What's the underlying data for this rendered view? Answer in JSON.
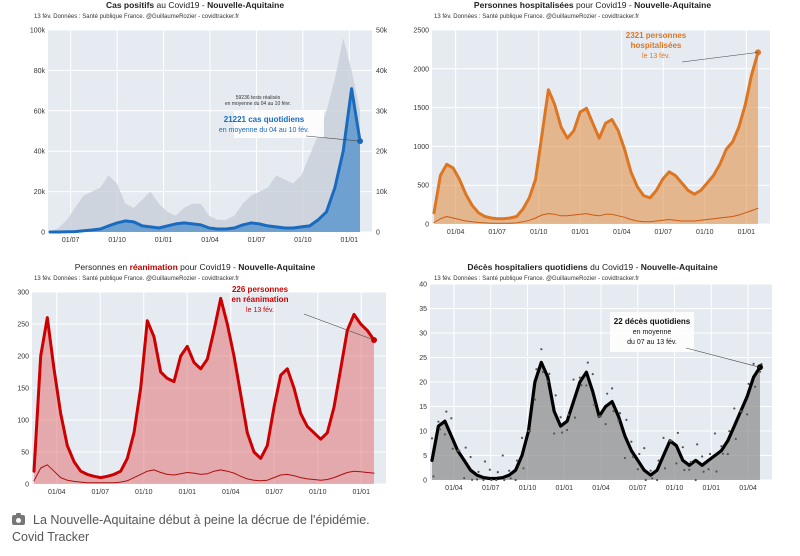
{
  "chart_data": [
    {
      "type": "area",
      "id": "cases",
      "title_pre": "Cas positifs",
      "title_mid": " au Covid19 - ",
      "title_region": "Nouvelle-Aquitaine",
      "source": "13 fév. Données : Santé publique France. @GuillaumeRozier - covidtracker.fr",
      "x_ticks": [
        "01/07",
        "01/10",
        "01/01",
        "01/04",
        "01/07",
        "01/10",
        "01/01"
      ],
      "y_ticks": [
        "0",
        "20k",
        "40k",
        "60k",
        "80k",
        "100k"
      ],
      "ylim": [
        0,
        100000
      ],
      "y2_ticks": [
        "0",
        "10k",
        "20k",
        "30k",
        "40k",
        "50k"
      ],
      "y2lim": [
        0,
        50000
      ],
      "series": [
        {
          "name": "",
          "axis": "right",
          "style": "gray-area",
          "values": [
            100,
            1000,
            3000,
            6000,
            9000,
            10000,
            11000,
            14000,
            12000,
            7000,
            6000,
            8000,
            10000,
            7000,
            5000,
            4000,
            6000,
            7000,
            7000,
            4000,
            3000,
            3000,
            4000,
            7000,
            9000,
            10000,
            11000,
            14000,
            13000,
            12000,
            14000,
            19000,
            24000,
            30000,
            38000,
            48000,
            40000,
            30000
          ]
        },
        {
          "name": "",
          "axis": "left",
          "style": "blue-line",
          "values": [
            0,
            0,
            100,
            200,
            600,
            1000,
            1500,
            3000,
            4500,
            5500,
            5000,
            3000,
            2500,
            2000,
            3000,
            4000,
            4500,
            4000,
            3500,
            2000,
            1500,
            1500,
            2000,
            3500,
            4500,
            4000,
            3000,
            2500,
            2000,
            2000,
            2500,
            3000,
            6000,
            10000,
            22000,
            40000,
            71000,
            45000
          ]
        }
      ],
      "annotations": [
        {
          "text": "59236 tests réalisés",
          "sub": "en moyenne du 04 au 10 févr."
        },
        {
          "text": "21221 cas quotidiens",
          "sub": "en moyenne du 04 au 10 fév."
        }
      ]
    },
    {
      "type": "area",
      "id": "hosp",
      "title_pre": "Personnes hospitalisées",
      "title_mid": " pour Covid19 - ",
      "title_region": "Nouvelle-Aquitaine",
      "source": "13 fév. Données : Santé publique France. @GuillaumeRozier - covidtracker.fr",
      "x_ticks": [
        "01/04",
        "01/07",
        "01/10",
        "01/01",
        "01/04",
        "01/07",
        "01/10",
        "01/01"
      ],
      "y_ticks": [
        "0",
        "500",
        "1000",
        "1500",
        "2000",
        "2500"
      ],
      "ylim": [
        0,
        2600
      ],
      "series": [
        {
          "name": "",
          "style": "orange-area",
          "values": [
            150,
            650,
            800,
            750,
            600,
            400,
            250,
            150,
            100,
            80,
            70,
            70,
            80,
            100,
            200,
            350,
            600,
            1200,
            1800,
            1600,
            1300,
            1150,
            1250,
            1500,
            1550,
            1350,
            1150,
            1350,
            1400,
            1250,
            1000,
            700,
            500,
            380,
            350,
            450,
            600,
            700,
            650,
            550,
            450,
            400,
            450,
            550,
            650,
            800,
            1000,
            1100,
            1300,
            1600,
            2000,
            2300
          ]
        },
        {
          "name": "",
          "style": "orange-thin",
          "values": [
            20,
            70,
            100,
            80,
            60,
            40,
            30,
            20,
            15,
            10,
            10,
            10,
            10,
            15,
            30,
            50,
            80,
            120,
            140,
            130,
            110,
            110,
            120,
            130,
            140,
            120,
            110,
            130,
            130,
            110,
            90,
            60,
            40,
            30,
            30,
            40,
            50,
            60,
            50,
            40,
            40,
            40,
            50,
            60,
            70,
            80,
            90,
            100,
            120,
            150,
            180,
            210
          ]
        }
      ],
      "annotations": [
        {
          "text": "2321 personnes",
          "sub": "hospitalisées"
        },
        {
          "text": "le 13 fév.",
          "sub": ""
        }
      ]
    },
    {
      "type": "area",
      "id": "rea",
      "title_pre": "Personnes en ",
      "title_bold": "réanimation",
      "title_mid": " pour Covid19 - ",
      "title_region": "Nouvelle-Aquitaine",
      "source": "13 fév. Données : Santé publique France. @GuillaumeRozier - covidtracker.fr",
      "x_ticks": [
        "01/04",
        "01/07",
        "01/10",
        "01/01",
        "01/04",
        "01/07",
        "01/10",
        "01/01"
      ],
      "y_ticks": [
        "0",
        "50",
        "100",
        "150",
        "200",
        "250",
        "300"
      ],
      "ylim": [
        0,
        300
      ],
      "series": [
        {
          "name": "",
          "style": "red-area",
          "values": [
            20,
            200,
            260,
            180,
            110,
            60,
            35,
            20,
            15,
            12,
            10,
            12,
            15,
            20,
            40,
            80,
            150,
            255,
            230,
            175,
            165,
            160,
            200,
            215,
            190,
            180,
            195,
            240,
            290,
            250,
            200,
            140,
            80,
            50,
            40,
            60,
            120,
            170,
            180,
            150,
            110,
            90,
            80,
            70,
            80,
            120,
            180,
            240,
            265,
            250,
            240,
            225
          ]
        },
        {
          "name": "",
          "style": "red-thin",
          "values": [
            5,
            25,
            30,
            20,
            10,
            6,
            4,
            3,
            2,
            2,
            2,
            2,
            2,
            3,
            5,
            10,
            15,
            20,
            22,
            18,
            15,
            14,
            16,
            18,
            17,
            15,
            16,
            20,
            22,
            20,
            17,
            12,
            8,
            6,
            5,
            6,
            10,
            14,
            15,
            13,
            10,
            8,
            7,
            6,
            7,
            10,
            14,
            18,
            20,
            19,
            18,
            17
          ]
        }
      ],
      "annotations": [
        {
          "text": "226 personnes",
          "sub": "en réanimation"
        },
        {
          "text": "le 13 fév.",
          "sub": ""
        }
      ]
    },
    {
      "type": "scatter",
      "id": "deces",
      "title_pre": "Décès hospitaliers quotidiens",
      "title_mid": " du Covid19 - ",
      "title_region": "Nouvelle-Aquitaine",
      "source": "13 fév. Données : Santé publique France. @GuillaumeRozier - covidtracker.fr",
      "x_ticks": [
        "01/04",
        "01/07",
        "01/10",
        "01/01",
        "01/04",
        "01/07",
        "01/10",
        "01/01",
        "01/04"
      ],
      "y_ticks": [
        "0",
        "5",
        "10",
        "15",
        "20",
        "25",
        "30",
        "35",
        "40"
      ],
      "ylim": [
        0,
        40
      ],
      "series": [
        {
          "name": "",
          "style": "black-line",
          "values": [
            4,
            11,
            12,
            9,
            6,
            4,
            2,
            1,
            0.5,
            0.3,
            0.3,
            0.5,
            1,
            2,
            5,
            10,
            20,
            24,
            21,
            14,
            11,
            12,
            16,
            20,
            22,
            18,
            13,
            15,
            16,
            13,
            9,
            6,
            4,
            2,
            1,
            2,
            5,
            8,
            7,
            4,
            3,
            4,
            3,
            4,
            5,
            6,
            8,
            11,
            14,
            17,
            21,
            23
          ]
        }
      ],
      "annotations": [
        {
          "text": "22 décès quotidiens",
          "sub": "en moyenne"
        },
        {
          "text": "du 07 au 13 fév.",
          "sub": ""
        }
      ]
    }
  ],
  "caption": {
    "text": "La Nouvelle-Aquitaine début à peine la décrue de l'épidémie.",
    "credit": "Covid Tracker"
  }
}
